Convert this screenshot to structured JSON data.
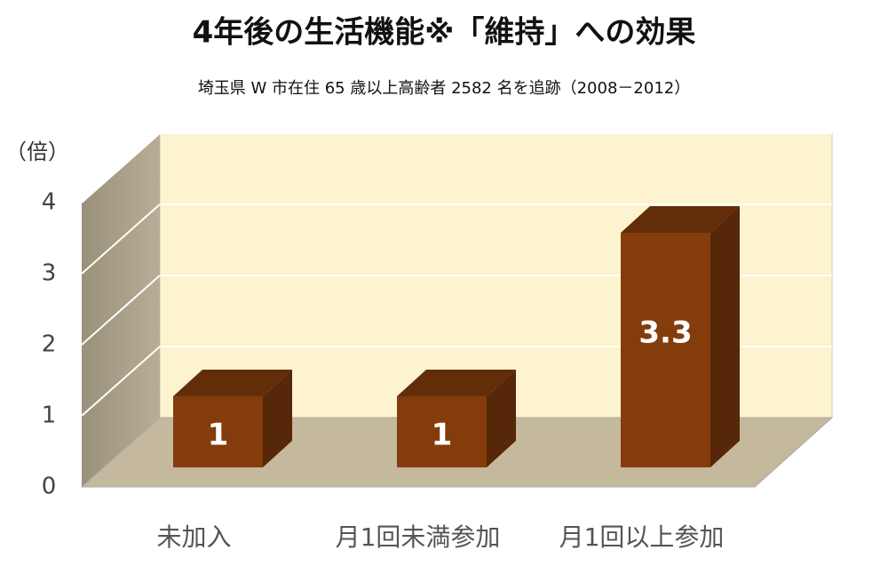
{
  "chart_data": {
    "type": "bar3d",
    "title": "4年後の生活機能※「維持」への効果",
    "subtitle": "埼玉県 W 市在住 65 歳以上高齢者 2582 名を追跡（2008－2012）",
    "y_label": "（倍）",
    "categories": [
      "未加入",
      "月1回未満参加",
      "月1回以上参加"
    ],
    "values": [
      1,
      1,
      3.3
    ],
    "color": "#843c0c",
    "ylim": [
      0,
      4
    ],
    "yticks": [
      0,
      1,
      2,
      3,
      4
    ],
    "grid": true
  }
}
